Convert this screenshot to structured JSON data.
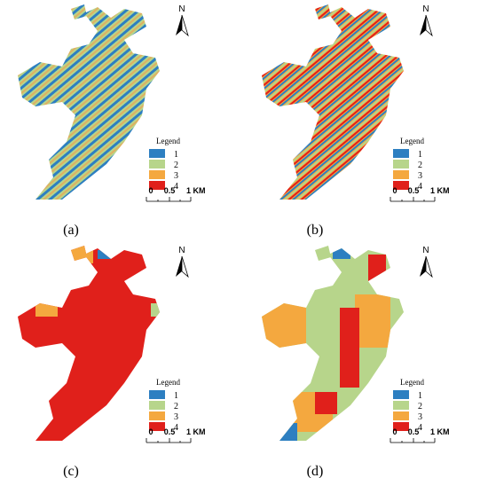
{
  "panels": [
    {
      "label": "(a)",
      "north": "N",
      "legend": {
        "title": "Legend",
        "items": [
          {
            "label": "1",
            "color": "#2d7fc1"
          },
          {
            "label": "2",
            "color": "#b7d58b"
          },
          {
            "label": "3",
            "color": "#f4a83f"
          },
          {
            "label": "4",
            "color": "#e0201b"
          }
        ]
      },
      "scale": {
        "labels": [
          "0",
          "0.5",
          "1 KM"
        ]
      }
    },
    {
      "label": "(b)",
      "north": "N",
      "legend": {
        "title": "Legend",
        "items": [
          {
            "label": "1",
            "color": "#2d7fc1"
          },
          {
            "label": "2",
            "color": "#b7d58b"
          },
          {
            "label": "3",
            "color": "#f4a83f"
          },
          {
            "label": "4",
            "color": "#e0201b"
          }
        ]
      },
      "scale": {
        "labels": [
          "0",
          "0.5",
          "1 KM"
        ]
      }
    },
    {
      "label": "(c)",
      "north": "N",
      "legend": {
        "title": "Legend",
        "items": [
          {
            "label": "1",
            "color": "#2d7fc1"
          },
          {
            "label": "2",
            "color": "#b7d58b"
          },
          {
            "label": "3",
            "color": "#f4a83f"
          },
          {
            "label": "4",
            "color": "#e0201b"
          }
        ]
      },
      "scale": {
        "labels": [
          "0",
          "0.5",
          "1 KM"
        ]
      }
    },
    {
      "label": "(d)",
      "north": "N",
      "legend": {
        "title": "Legend",
        "items": [
          {
            "label": "1",
            "color": "#2d7fc1"
          },
          {
            "label": "2",
            "color": "#b7d58b"
          },
          {
            "label": "3",
            "color": "#f4a83f"
          },
          {
            "label": "4",
            "color": "#e0201b"
          }
        ]
      },
      "scale": {
        "labels": [
          "0",
          "0.5",
          "1 KM"
        ]
      }
    }
  ]
}
